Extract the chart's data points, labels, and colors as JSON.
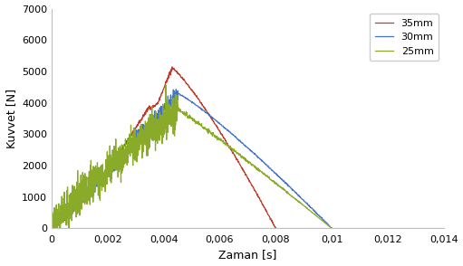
{
  "xlabel": "Zaman [s]",
  "ylabel": "Kuvvet [N]",
  "xlim": [
    0,
    0.014
  ],
  "ylim": [
    0,
    7000
  ],
  "xticks": [
    0,
    0.002,
    0.004,
    0.006,
    0.008,
    0.01,
    0.012,
    0.014
  ],
  "yticks": [
    0,
    1000,
    2000,
    3000,
    4000,
    5000,
    6000,
    7000
  ],
  "legend_labels": [
    "35mm",
    "30mm",
    "25mm"
  ],
  "colors": [
    "#c0392b",
    "#4472c4",
    "#8aab29"
  ]
}
